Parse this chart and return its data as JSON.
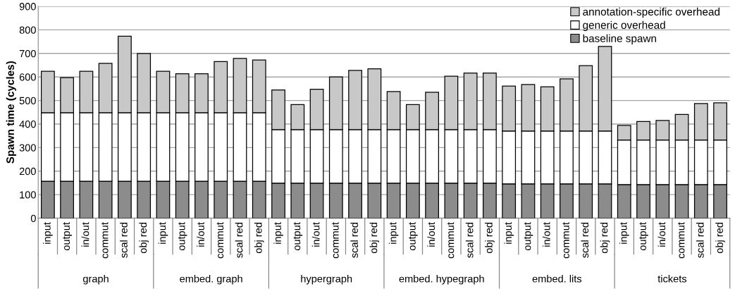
{
  "chart_data": {
    "type": "bar",
    "stacked": true,
    "ylabel": "Spawn time (cycles)",
    "categories": [
      "input",
      "output",
      "in/out",
      "commut",
      "scal red",
      "obj red",
      "input",
      "output",
      "in/out",
      "commut",
      "scal red",
      "obj red",
      "input",
      "output",
      "in/out",
      "commut",
      "scal red",
      "obj red",
      "input",
      "output",
      "in/out",
      "commut",
      "scal red",
      "obj red",
      "input",
      "output",
      "in/out",
      "commut",
      "scal red",
      "obj red",
      "input",
      "output",
      "in/out",
      "commut",
      "scal red",
      "obj red"
    ],
    "annotations": [
      "graph",
      "embed. graph",
      "hypergraph",
      "embed. hypegraph",
      "embed. lits",
      "tickets"
    ],
    "series": [
      {
        "name": "baseline spawn",
        "color": "#8c8c8c",
        "values": [
          157,
          157,
          157,
          157,
          157,
          157,
          157,
          157,
          157,
          157,
          157,
          157,
          149,
          149,
          149,
          149,
          149,
          149,
          149,
          149,
          149,
          149,
          149,
          149,
          146,
          146,
          146,
          146,
          146,
          146,
          143,
          143,
          143,
          143,
          143,
          143
        ]
      },
      {
        "name": "generic overhead",
        "color": "#ffffff",
        "values": [
          291,
          291,
          291,
          291,
          291,
          291,
          291,
          291,
          291,
          291,
          291,
          291,
          227,
          227,
          227,
          227,
          227,
          227,
          227,
          227,
          227,
          227,
          227,
          227,
          224,
          224,
          224,
          224,
          224,
          224,
          189,
          189,
          189,
          189,
          189,
          189
        ]
      },
      {
        "name": "annotation-specific overhead",
        "color": "#c8c8c8",
        "values": [
          176,
          149,
          176,
          210,
          325,
          252,
          176,
          166,
          166,
          217,
          231,
          224,
          169,
          107,
          172,
          224,
          252,
          259,
          162,
          107,
          159,
          227,
          241,
          241,
          191,
          198,
          188,
          222,
          278,
          360,
          62,
          79,
          83,
          109,
          155,
          158
        ]
      }
    ],
    "ylim": [
      0,
      900
    ],
    "yticks": [
      0,
      100,
      200,
      300,
      400,
      500,
      600,
      700,
      800,
      900
    ],
    "grid": "y",
    "legend": "top right"
  }
}
